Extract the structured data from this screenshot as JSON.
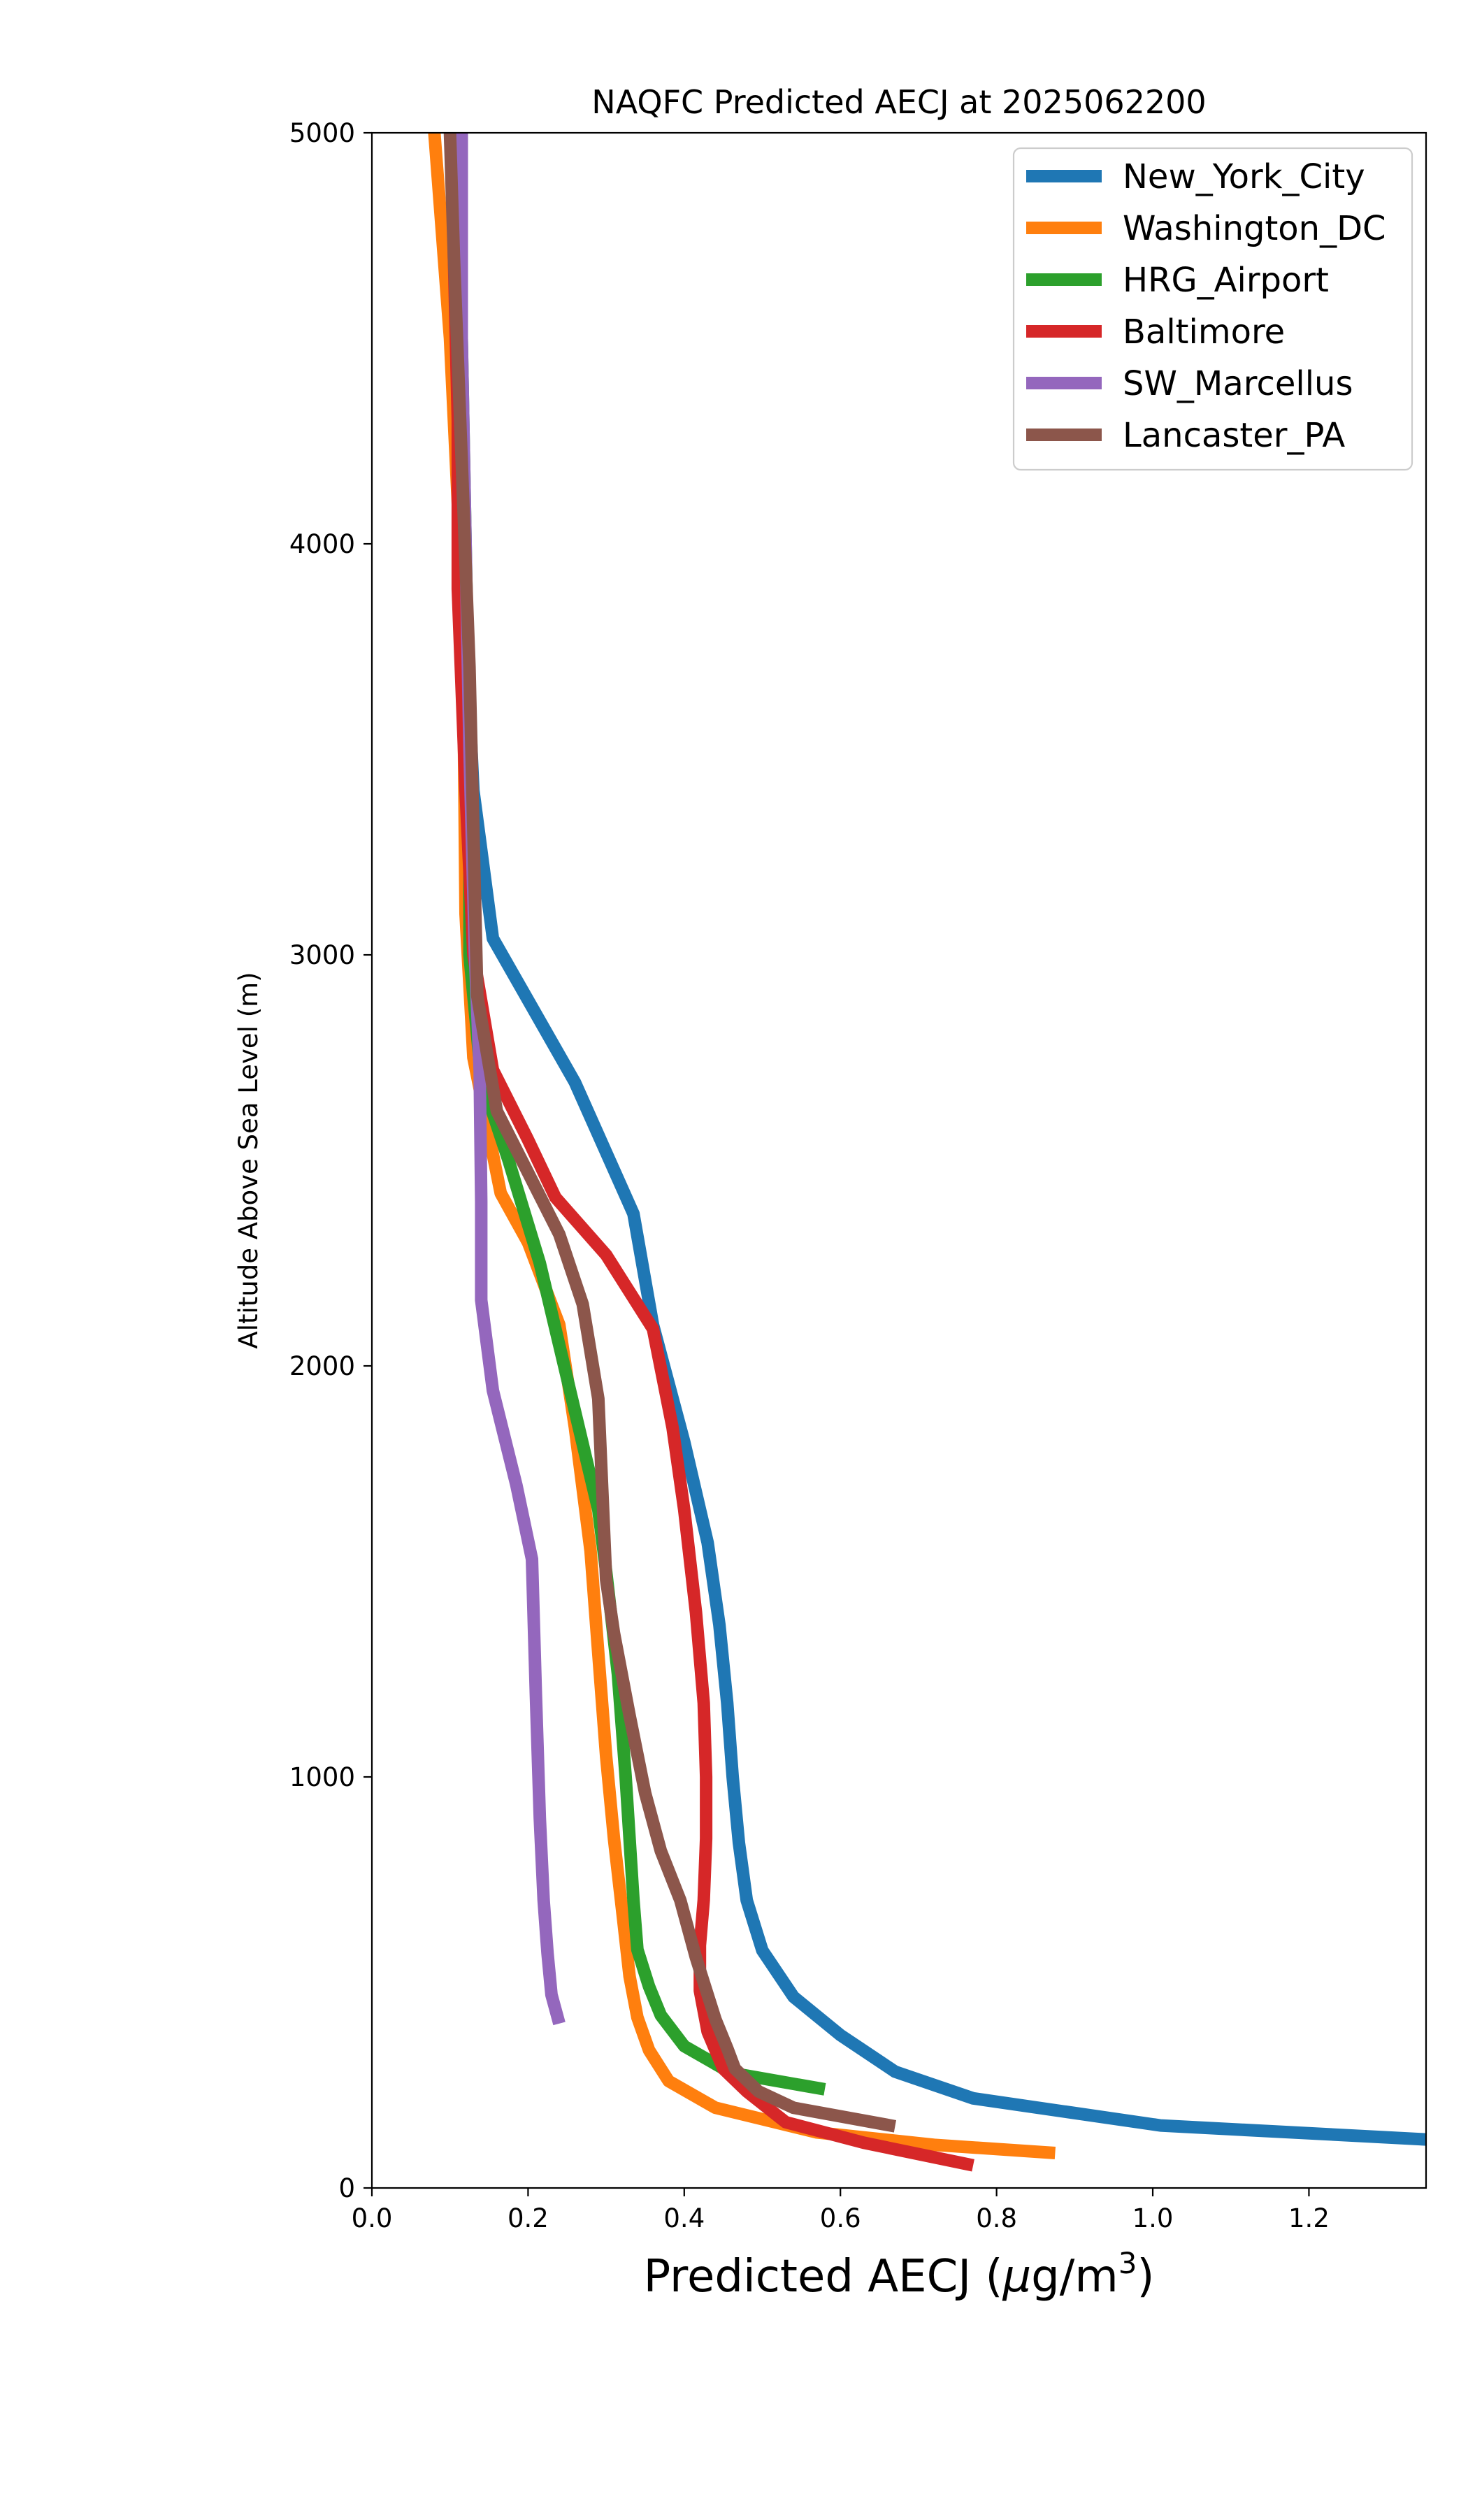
{
  "chart_data": {
    "type": "line",
    "title": "NAQFC Predicted AECJ at 2025062200",
    "xlabel": "Predicted AECJ (μg/m³)",
    "xlabel_parts": {
      "pre": "Predicted AECJ (",
      "mu": "μ",
      "mid": "g/m",
      "sup": "3",
      "post": ")"
    },
    "ylabel": "Altitude Above Sea Level (m)",
    "xlim": [
      0,
      1.35
    ],
    "ylim": [
      0,
      5000
    ],
    "xticks": [
      0.0,
      0.2,
      0.4,
      0.6,
      0.8,
      1.0,
      1.2
    ],
    "xtick_labels": [
      "0.0",
      "0.2",
      "0.4",
      "0.6",
      "0.8",
      "1.0",
      "1.2"
    ],
    "yticks": [
      0,
      1000,
      2000,
      3000,
      4000,
      5000
    ],
    "ytick_labels": [
      "0",
      "1000",
      "2000",
      "3000",
      "4000",
      "5000"
    ],
    "grid": false,
    "legend_position": "top-right",
    "series": [
      {
        "name": "New_York_City",
        "color": "#1f77b4",
        "points": [
          [
            1.35,
            118
          ],
          [
            1.01,
            152
          ],
          [
            0.77,
            218
          ],
          [
            0.67,
            283
          ],
          [
            0.6,
            372
          ],
          [
            0.54,
            465
          ],
          [
            0.5,
            578
          ],
          [
            0.48,
            700
          ],
          [
            0.47,
            840
          ],
          [
            0.462,
            1000
          ],
          [
            0.455,
            1180
          ],
          [
            0.445,
            1370
          ],
          [
            0.43,
            1570
          ],
          [
            0.4,
            1815
          ],
          [
            0.36,
            2100
          ],
          [
            0.335,
            2370
          ],
          [
            0.26,
            2690
          ],
          [
            0.155,
            3040
          ],
          [
            0.13,
            3400
          ],
          [
            0.12,
            3800
          ],
          [
            0.115,
            4200
          ],
          [
            0.11,
            4600
          ],
          [
            0.105,
            5000
          ]
        ]
      },
      {
        "name": "Washington_DC",
        "color": "#ff7f0e",
        "points": [
          [
            0.875,
            85
          ],
          [
            0.72,
            105
          ],
          [
            0.57,
            135
          ],
          [
            0.44,
            195
          ],
          [
            0.38,
            260
          ],
          [
            0.355,
            335
          ],
          [
            0.34,
            415
          ],
          [
            0.33,
            515
          ],
          [
            0.322,
            650
          ],
          [
            0.31,
            850
          ],
          [
            0.3,
            1050
          ],
          [
            0.29,
            1300
          ],
          [
            0.28,
            1550
          ],
          [
            0.26,
            1850
          ],
          [
            0.24,
            2100
          ],
          [
            0.2,
            2300
          ],
          [
            0.165,
            2420
          ],
          [
            0.13,
            2750
          ],
          [
            0.12,
            3100
          ],
          [
            0.118,
            3500
          ],
          [
            0.115,
            3900
          ],
          [
            0.1,
            4500
          ],
          [
            0.08,
            5000
          ]
        ]
      },
      {
        "name": "HRG_Airport",
        "color": "#2ca02c",
        "points": [
          [
            0.58,
            240
          ],
          [
            0.46,
            280
          ],
          [
            0.4,
            345
          ],
          [
            0.37,
            420
          ],
          [
            0.355,
            490
          ],
          [
            0.34,
            580
          ],
          [
            0.335,
            700
          ],
          [
            0.33,
            850
          ],
          [
            0.325,
            1000
          ],
          [
            0.315,
            1250
          ],
          [
            0.3,
            1500
          ],
          [
            0.29,
            1650
          ],
          [
            0.265,
            1850
          ],
          [
            0.24,
            2050
          ],
          [
            0.215,
            2250
          ],
          [
            0.175,
            2500
          ],
          [
            0.14,
            2700
          ],
          [
            0.125,
            3000
          ],
          [
            0.125,
            3500
          ],
          [
            0.12,
            4000
          ],
          [
            0.115,
            4500
          ],
          [
            0.115,
            5000
          ]
        ]
      },
      {
        "name": "Baltimore",
        "color": "#d62728",
        "points": [
          [
            0.77,
            55
          ],
          [
            0.63,
            110
          ],
          [
            0.53,
            160
          ],
          [
            0.48,
            235
          ],
          [
            0.45,
            290
          ],
          [
            0.43,
            380
          ],
          [
            0.42,
            480
          ],
          [
            0.42,
            590
          ],
          [
            0.425,
            700
          ],
          [
            0.428,
            850
          ],
          [
            0.428,
            1000
          ],
          [
            0.425,
            1180
          ],
          [
            0.415,
            1400
          ],
          [
            0.4,
            1650
          ],
          [
            0.385,
            1850
          ],
          [
            0.36,
            2090
          ],
          [
            0.3,
            2270
          ],
          [
            0.235,
            2410
          ],
          [
            0.2,
            2550
          ],
          [
            0.155,
            2720
          ],
          [
            0.13,
            3000
          ],
          [
            0.12,
            3400
          ],
          [
            0.11,
            3890
          ],
          [
            0.11,
            4300
          ],
          [
            0.105,
            4700
          ],
          [
            0.105,
            5000
          ]
        ]
      },
      {
        "name": "SW_Marcellus",
        "color": "#9467bd",
        "points": [
          [
            0.24,
            400
          ],
          [
            0.23,
            470
          ],
          [
            0.225,
            570
          ],
          [
            0.22,
            700
          ],
          [
            0.215,
            900
          ],
          [
            0.21,
            1200
          ],
          [
            0.205,
            1530
          ],
          [
            0.185,
            1710
          ],
          [
            0.155,
            1940
          ],
          [
            0.14,
            2160
          ],
          [
            0.14,
            2400
          ],
          [
            0.138,
            2720
          ],
          [
            0.132,
            3000
          ],
          [
            0.125,
            3500
          ],
          [
            0.12,
            4000
          ],
          [
            0.115,
            4500
          ],
          [
            0.115,
            5000
          ]
        ]
      },
      {
        "name": "Lancaster_PA",
        "color": "#8c564b",
        "points": [
          [
            0.67,
            150
          ],
          [
            0.54,
            195
          ],
          [
            0.495,
            235
          ],
          [
            0.465,
            290
          ],
          [
            0.455,
            340
          ],
          [
            0.44,
            410
          ],
          [
            0.415,
            560
          ],
          [
            0.395,
            700
          ],
          [
            0.37,
            820
          ],
          [
            0.35,
            960
          ],
          [
            0.33,
            1150
          ],
          [
            0.31,
            1350
          ],
          [
            0.3,
            1480
          ],
          [
            0.295,
            1700
          ],
          [
            0.29,
            1920
          ],
          [
            0.27,
            2150
          ],
          [
            0.24,
            2320
          ],
          [
            0.2,
            2470
          ],
          [
            0.16,
            2620
          ],
          [
            0.135,
            2900
          ],
          [
            0.13,
            3300
          ],
          [
            0.125,
            3700
          ],
          [
            0.115,
            4200
          ],
          [
            0.105,
            4700
          ],
          [
            0.1,
            5000
          ]
        ]
      }
    ]
  }
}
